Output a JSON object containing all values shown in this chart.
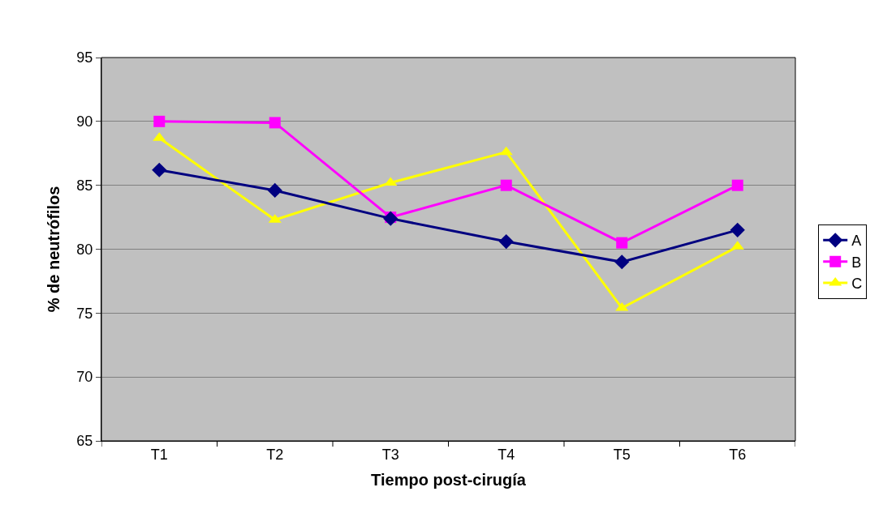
{
  "chart_data": {
    "type": "line",
    "xlabel": "Tiempo post-cirugía",
    "ylabel": "% de neutrófilos",
    "categories": [
      "T1",
      "T2",
      "T3",
      "T4",
      "T5",
      "T6"
    ],
    "series": [
      {
        "name": "A",
        "color": "#000080",
        "marker": "diamond",
        "values": [
          86.2,
          84.6,
          82.4,
          80.6,
          79.0,
          81.5
        ]
      },
      {
        "name": "B",
        "color": "#ff00ff",
        "marker": "square",
        "values": [
          90.0,
          89.9,
          82.5,
          85.0,
          80.5,
          85.0
        ]
      },
      {
        "name": "C",
        "color": "#ffff00",
        "marker": "triangle",
        "values": [
          88.7,
          82.3,
          85.2,
          87.6,
          75.4,
          80.2
        ]
      }
    ],
    "ylim": [
      65,
      95
    ],
    "yticks": [
      65,
      70,
      75,
      80,
      85,
      90,
      95
    ],
    "grid": "y",
    "legend": "right",
    "line_style": "solid"
  }
}
